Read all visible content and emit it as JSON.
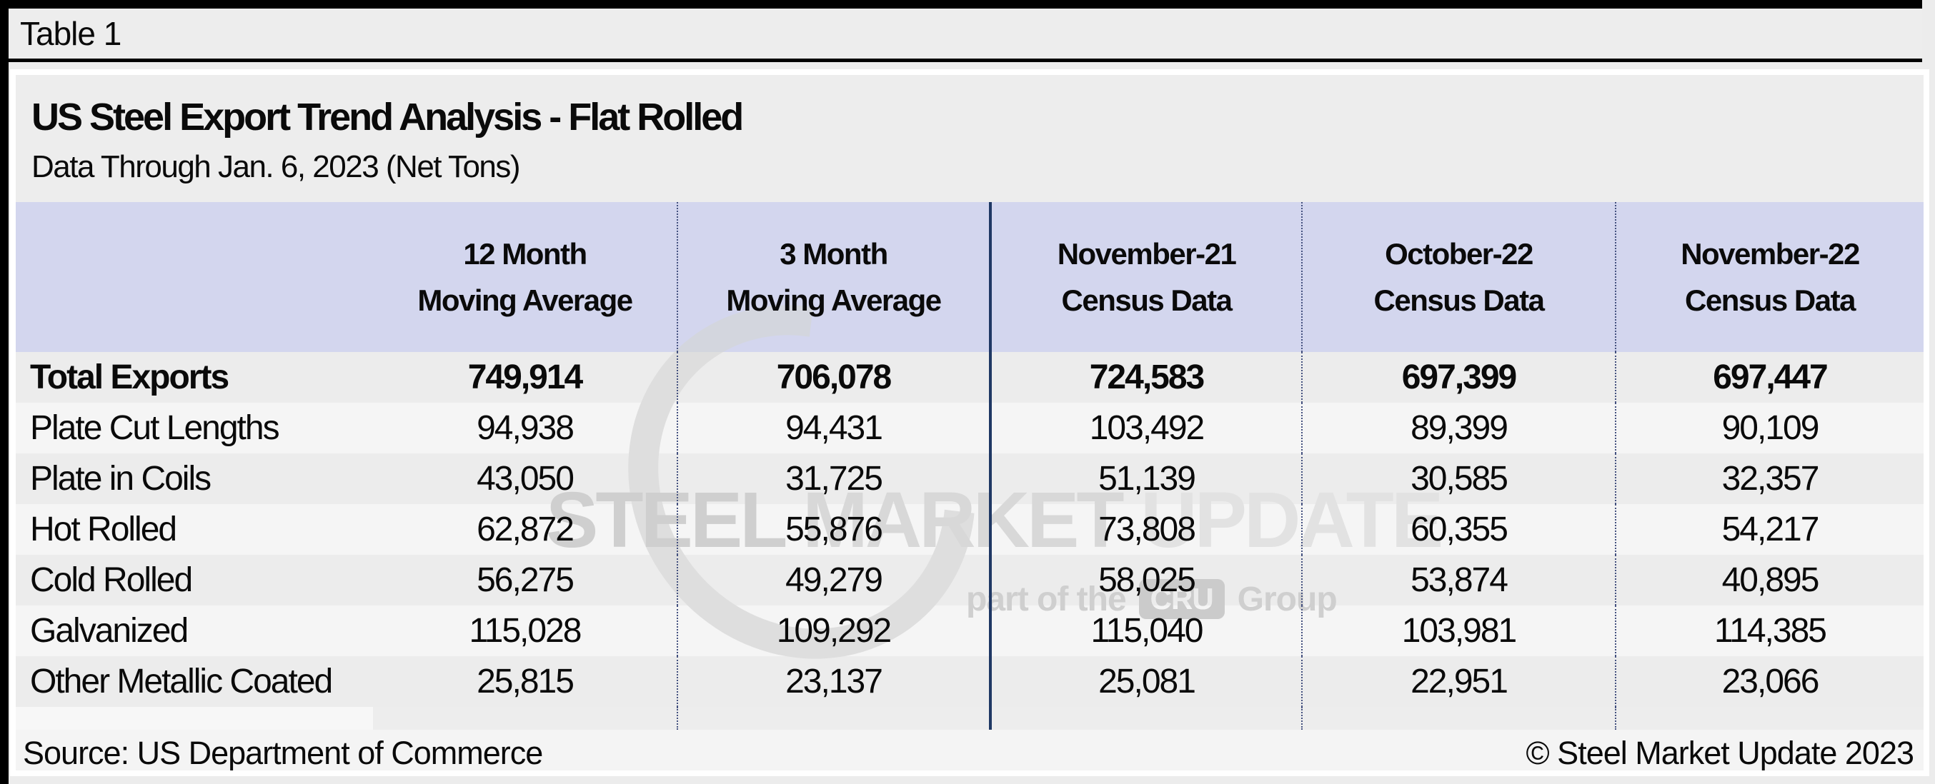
{
  "caption": "Table 1",
  "header": {
    "title": "US Steel Export Trend Analysis - Flat Rolled",
    "subtitle": "Data Through Jan. 6, 2023 (Net Tons)"
  },
  "table": {
    "columns": [
      {
        "line1": "",
        "line2": ""
      },
      {
        "line1": "12 Month",
        "line2": "Moving Average"
      },
      {
        "line1": "3 Month",
        "line2": "Moving Average"
      },
      {
        "line1": "November-21",
        "line2": "Census Data"
      },
      {
        "line1": "October-22",
        "line2": "Census Data"
      },
      {
        "line1": "November-22",
        "line2": "Census Data"
      }
    ],
    "rows": [
      {
        "label": "Total Exports",
        "bold": true,
        "values": [
          "749,914",
          "706,078",
          "724,583",
          "697,399",
          "697,447"
        ]
      },
      {
        "label": "Plate Cut Lengths",
        "bold": false,
        "values": [
          "94,938",
          "94,431",
          "103,492",
          "89,399",
          "90,109"
        ]
      },
      {
        "label": "Plate in Coils",
        "bold": false,
        "values": [
          "43,050",
          "31,725",
          "51,139",
          "30,585",
          "32,357"
        ]
      },
      {
        "label": "Hot Rolled",
        "bold": false,
        "values": [
          "62,872",
          "55,876",
          "73,808",
          "60,355",
          "54,217"
        ]
      },
      {
        "label": "Cold Rolled",
        "bold": false,
        "values": [
          "56,275",
          "49,279",
          "58,025",
          "53,874",
          "40,895"
        ]
      },
      {
        "label": "Galvanized",
        "bold": false,
        "values": [
          "115,028",
          "109,292",
          "115,040",
          "103,981",
          "114,385"
        ]
      },
      {
        "label": "Other Metallic Coated",
        "bold": false,
        "values": [
          "25,815",
          "23,137",
          "25,081",
          "22,951",
          "23,066"
        ]
      }
    ]
  },
  "footer": {
    "source": "Source: US Department of Commerce",
    "copyright": "© Steel Market Update 2023"
  },
  "watermark": {
    "word1": "STEEL",
    "word2": "MARKET",
    "word3": "UPDATE",
    "tagline_prefix": "part of the",
    "badge": "CRU",
    "tagline_suffix": "Group"
  },
  "colors": {
    "header_background": "#d3d6ee",
    "solid_divider": "#1f3864",
    "dotted_divider": "#44517f",
    "row_odd": "#ececec",
    "row_even": "#f5f5f5",
    "footer_background": "#f4f4f4",
    "frame": "#000000"
  },
  "chart_data": {
    "type": "table",
    "title": "US Steel Export Trend Analysis - Flat Rolled",
    "subtitle": "Data Through Jan. 6, 2023 (Net Tons)",
    "caption": "Table 1",
    "units": "Net Tons",
    "columns": [
      "12 Month Moving Average",
      "3 Month Moving Average",
      "November-21 Census Data",
      "October-22 Census Data",
      "November-22 Census Data"
    ],
    "categories": [
      "Total Exports",
      "Plate Cut Lengths",
      "Plate in Coils",
      "Hot Rolled",
      "Cold Rolled",
      "Galvanized",
      "Other Metallic Coated"
    ],
    "series": [
      {
        "name": "12 Month Moving Average",
        "values": [
          749914,
          94938,
          43050,
          62872,
          56275,
          115028,
          25815
        ]
      },
      {
        "name": "3 Month Moving Average",
        "values": [
          706078,
          94431,
          31725,
          55876,
          49279,
          109292,
          23137
        ]
      },
      {
        "name": "November-21 Census Data",
        "values": [
          724583,
          103492,
          51139,
          73808,
          58025,
          115040,
          25081
        ]
      },
      {
        "name": "October-22 Census Data",
        "values": [
          697399,
          89399,
          30585,
          60355,
          53874,
          103981,
          22951
        ]
      },
      {
        "name": "November-22 Census Data",
        "values": [
          697447,
          90109,
          32357,
          54217,
          40895,
          114385,
          23066
        ]
      }
    ],
    "source": "US Department of Commerce"
  }
}
